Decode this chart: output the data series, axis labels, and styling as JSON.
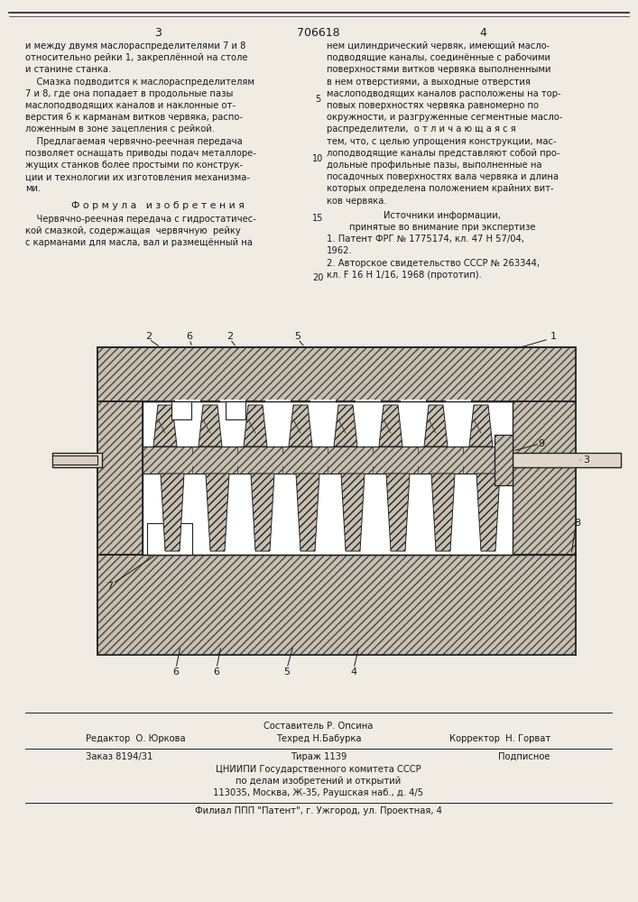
{
  "page_width": 7.07,
  "page_height": 10.0,
  "bg_color": "#f0ece4",
  "draw_bg": "#ffffff",
  "hatch_color": "#444444",
  "hatch_bg": "#c8c0b0",
  "text_color": "#1a1a1a",
  "patent_number": "706618",
  "page_numbers": [
    "3",
    "4"
  ],
  "col1_text": [
    "и между двумя маслораспределителями 7 и 8",
    "относительно рейки 1, закреплённой на столе",
    "и станине станка.",
    "    Смазка подводится к маслораспределителям",
    "7 и 8, где она попадает в продольные пазы",
    "маслоподводящих каналов и наклонные от-",
    "верстия 6 к карманам витков червяка, распо-",
    "ложенным в зоне зацепления с рейкой.",
    "    Предлагаемая червячно-реечная передача",
    "позволяет оснащать приводы подач металлоре-",
    "жущих станков более простыми по конструк-",
    "ции и технологии их изготовления механизма-",
    "ми."
  ],
  "formula_header": "Ф о р м у л а   и з о б р е т е н и я",
  "formula_text": [
    "    Червячно-реечная передача с гидростатичес-",
    "кой смазкой, содержащая  червячную  рейку",
    "с карманами для масла, вал и размещённый на"
  ],
  "col2_text": [
    "нем цилиндрический червяк, имеющий масло-",
    "подводящие каналы, соединённые с рабочими",
    "поверхностями витков червяка выполненными",
    "в нем отверстиями, а выходные отверстия",
    "маслоподводящих каналов расположены на тор-",
    "повых поверхностях червяка равномерно по",
    "окружности, и разгруженные сегментные масло-",
    "распределители,  о т л и ч а ю щ а я с я",
    "тем, что, с целью упрощения конструкции, мас-",
    "лоподводящие каналы представляют собой про-",
    "дольные профильные пазы, выполненные на",
    "посадочных поверхностях вала червяка и длина",
    "которых определена положением крайних вит-",
    "ков червяка."
  ],
  "sources_header": "Источники информации,",
  "sources_subheader": "принятые во внимание при экспертизе",
  "sources": [
    "1. Патент ФРГ № 1775174, кл. 47 Н 57/04,",
    "1962.",
    "2. Авторское свидетельство СССР № 263344,",
    "кл. F 16 Н 1/16, 1968 (прототип)."
  ],
  "footer_sestavitel": "Составитель Р. Опсина",
  "footer_redaktor": "Редактор  О. Юркова",
  "footer_tehred": "Техред Н.Бабурка",
  "footer_korrektor": "Корректор  Н. Горват",
  "footer_order": "Заказ 8194/31",
  "footer_tirazh": "Тираж 1139",
  "footer_podpisnoe": "Подписное",
  "footer_tsniipi": "ЦНИИПИ Государственного комитета СССР",
  "footer_po_delam": "по делам изобретений и открытий",
  "footer_address": "113035, Москва, Ж-35, Раушская наб., д. 4/5",
  "footer_filial": "Филиал ППП \"Патент\", г. Ужгород, ул. Проектная, 4"
}
